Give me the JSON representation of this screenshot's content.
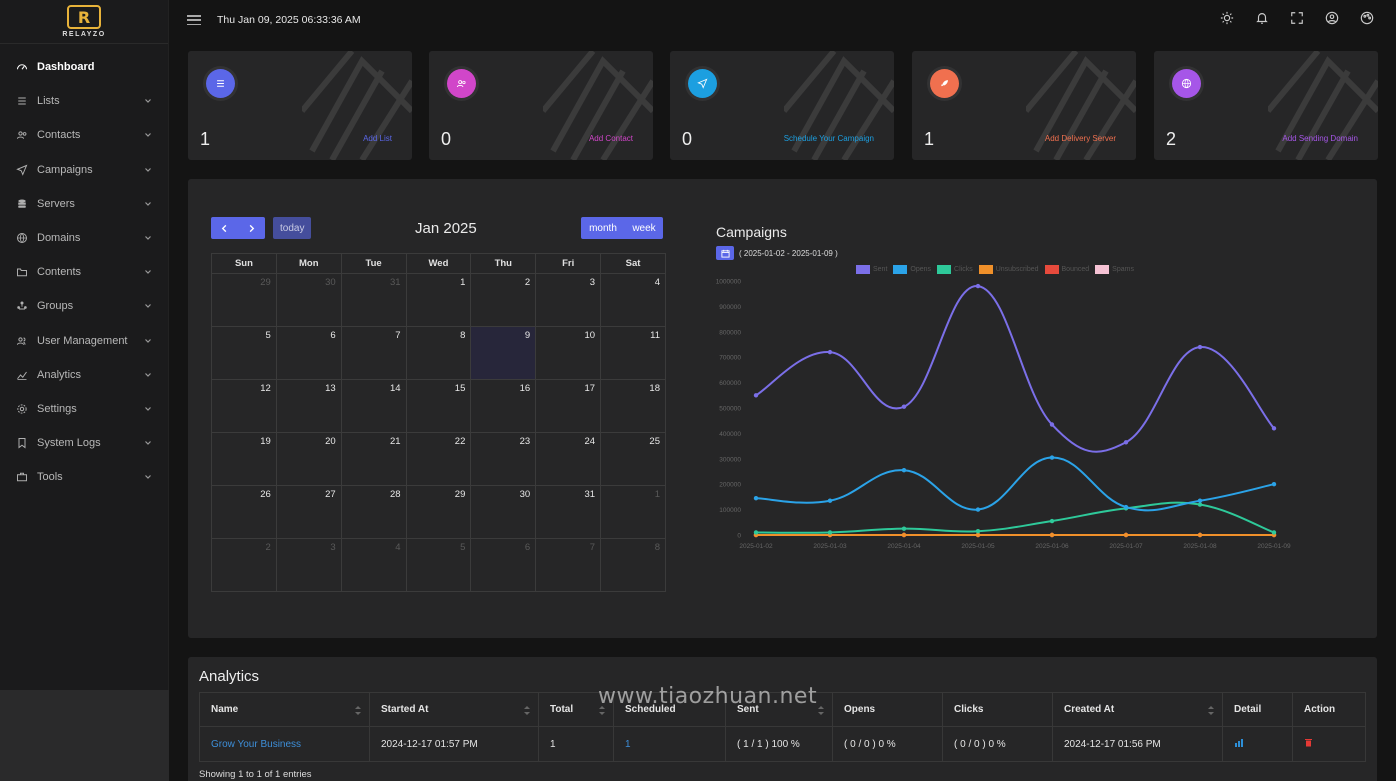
{
  "app": {
    "logo_letter": "R",
    "logo_text": "RELAYZO"
  },
  "topbar": {
    "datetime": "Thu Jan 09, 2025 06:33:36 AM",
    "icons": [
      "sun-icon",
      "bell-icon",
      "fullscreen-icon",
      "user-icon",
      "palette-icon"
    ]
  },
  "sidebar": {
    "items": [
      {
        "label": "Dashboard",
        "icon": "dashboard-icon",
        "active": true
      },
      {
        "label": "Lists",
        "icon": "list-icon"
      },
      {
        "label": "Contacts",
        "icon": "contacts-icon"
      },
      {
        "label": "Campaigns",
        "icon": "send-icon"
      },
      {
        "label": "Servers",
        "icon": "server-icon"
      },
      {
        "label": "Domains",
        "icon": "globe-icon"
      },
      {
        "label": "Contents",
        "icon": "folder-icon"
      },
      {
        "label": "Groups",
        "icon": "groups-icon"
      },
      {
        "label": "User Management",
        "icon": "users-icon"
      },
      {
        "label": "Analytics",
        "icon": "analytics-icon"
      },
      {
        "label": "Settings",
        "icon": "settings-icon"
      },
      {
        "label": "System Logs",
        "icon": "bookmark-icon"
      },
      {
        "label": "Tools",
        "icon": "toolbox-icon"
      }
    ]
  },
  "cards": [
    {
      "value": "1",
      "link": "Add List",
      "color": "#5b67e8",
      "link_color": "#5b67e8",
      "icon": "list-icon"
    },
    {
      "value": "0",
      "link": "Add Contact",
      "color": "#d146c9",
      "link_color": "#d146c9",
      "icon": "contacts-icon"
    },
    {
      "value": "0",
      "link": "Schedule Your Campaign",
      "color": "#1c9fe0",
      "link_color": "#1c9fe0",
      "icon": "send-icon"
    },
    {
      "value": "1",
      "link": "Add Delivery Server",
      "color": "#f0704f",
      "link_color": "#f0704f",
      "icon": "rocket-icon"
    },
    {
      "value": "2",
      "link": "Add Sending Domain",
      "color": "#a656e8",
      "link_color": "#a656e8",
      "icon": "globe-icon"
    }
  ],
  "calendar": {
    "title": "Jan 2025",
    "today_label": "today",
    "month_label": "month",
    "week_label": "week",
    "weekdays": [
      "Sun",
      "Mon",
      "Tue",
      "Wed",
      "Thu",
      "Fri",
      "Sat"
    ],
    "weeks": [
      [
        "29",
        "30",
        "31",
        "1",
        "2",
        "3",
        "4"
      ],
      [
        "5",
        "6",
        "7",
        "8",
        "9",
        "10",
        "11"
      ],
      [
        "12",
        "13",
        "14",
        "15",
        "16",
        "17",
        "18"
      ],
      [
        "19",
        "20",
        "21",
        "22",
        "23",
        "24",
        "25"
      ],
      [
        "26",
        "27",
        "28",
        "29",
        "30",
        "31",
        "1"
      ],
      [
        "2",
        "3",
        "4",
        "5",
        "6",
        "7",
        "8"
      ]
    ]
  },
  "campaigns_chart": {
    "title": "Campaigns",
    "range": "( 2025-01-02 - 2025-01-09 )"
  },
  "chart_data": {
    "type": "line",
    "title": "Campaigns",
    "categories": [
      "2025-01-02",
      "2025-01-03",
      "2025-01-04",
      "2025-01-05",
      "2025-01-06",
      "2025-01-07",
      "2025-01-08",
      "2025-01-09"
    ],
    "y_ticks": [
      "0",
      "100000",
      "200000",
      "300000",
      "400000",
      "500000",
      "600000",
      "700000",
      "800000",
      "900000",
      "1000000"
    ],
    "ylim": [
      0,
      1000000
    ],
    "series": [
      {
        "name": "Sent",
        "color": "#7b6fe8",
        "values": [
          550000,
          720000,
          505000,
          980000,
          435000,
          365000,
          740000,
          420000
        ]
      },
      {
        "name": "Opens",
        "color": "#2ba3e8",
        "values": [
          145000,
          135000,
          255000,
          100000,
          305000,
          110000,
          135000,
          200000
        ]
      },
      {
        "name": "Clicks",
        "color": "#2ec99a",
        "values": [
          10000,
          10000,
          25000,
          15000,
          55000,
          105000,
          120000,
          10000
        ]
      },
      {
        "name": "Unsubscribed",
        "color": "#f0902a",
        "values": [
          0,
          0,
          0,
          0,
          0,
          0,
          0,
          0
        ]
      },
      {
        "name": "Bounced",
        "color": "#e64a3c",
        "values": [
          0,
          0,
          0,
          0,
          0,
          0,
          0,
          0
        ]
      },
      {
        "name": "Spams",
        "color": "#f5c2d4",
        "values": [
          0,
          0,
          0,
          0,
          0,
          0,
          0,
          0
        ]
      }
    ]
  },
  "analytics": {
    "title": "Analytics",
    "columns": [
      "Name",
      "Started At",
      "Total",
      "Scheduled",
      "Sent",
      "Opens",
      "Clicks",
      "Created At",
      "Detail",
      "Action"
    ],
    "rows": [
      {
        "name": "Grow Your Business",
        "started_at": "2024-12-17 01:57 PM",
        "total": "1",
        "scheduled": "1",
        "sent": "( 1 / 1 ) 100 %",
        "opens": "( 0 / 0 ) 0 %",
        "clicks": "( 0 / 0 ) 0 %",
        "created_at": "2024-12-17 01:56 PM"
      }
    ],
    "showing": "Showing 1 to 1 of 1 entries"
  },
  "watermark": "www.tiaozhuan.net"
}
